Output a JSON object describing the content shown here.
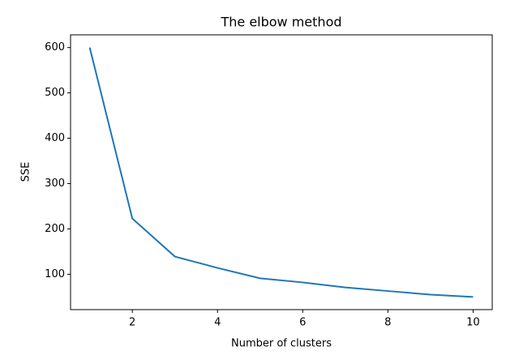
{
  "chart_data": {
    "type": "line",
    "title": "The elbow method",
    "xlabel": "Number of clusters",
    "ylabel": "SSE",
    "x": [
      1,
      2,
      3,
      4,
      5,
      6,
      7,
      8,
      9,
      10
    ],
    "series": [
      {
        "name": "SSE",
        "color": "#1f77b4",
        "values": [
          600,
          223,
          139,
          114,
          91,
          82,
          71,
          63,
          55,
          50
        ]
      }
    ],
    "xlim": [
      0.55,
      10.45
    ],
    "xticks": [
      2,
      4,
      6,
      8,
      10
    ],
    "ylim": [
      22,
      628
    ],
    "yticks": [
      100,
      200,
      300,
      400,
      500,
      600
    ],
    "grid": false,
    "legend": false
  }
}
